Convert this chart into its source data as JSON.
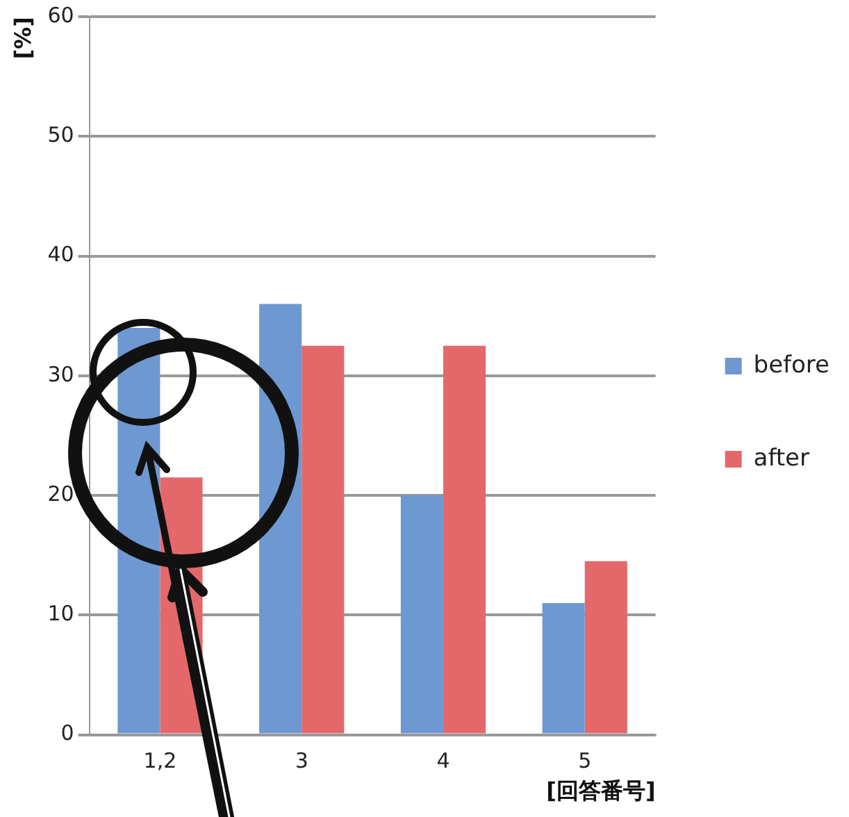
{
  "chart_data": {
    "type": "bar",
    "xlabel": "[回答番号]",
    "ylabel": "[%]",
    "categories": [
      "1,2",
      "3",
      "4",
      "5"
    ],
    "series": [
      {
        "name": "before",
        "color": "#6e98d2",
        "values": [
          34,
          36,
          20,
          11
        ]
      },
      {
        "name": "after",
        "color": "#e4686a",
        "values": [
          21.5,
          32.5,
          32.5,
          14.5
        ]
      }
    ],
    "ylim": [
      0,
      60
    ],
    "yticks": [
      0,
      10,
      20,
      30,
      40,
      50,
      60
    ],
    "grid": "y",
    "legend": "right"
  }
}
